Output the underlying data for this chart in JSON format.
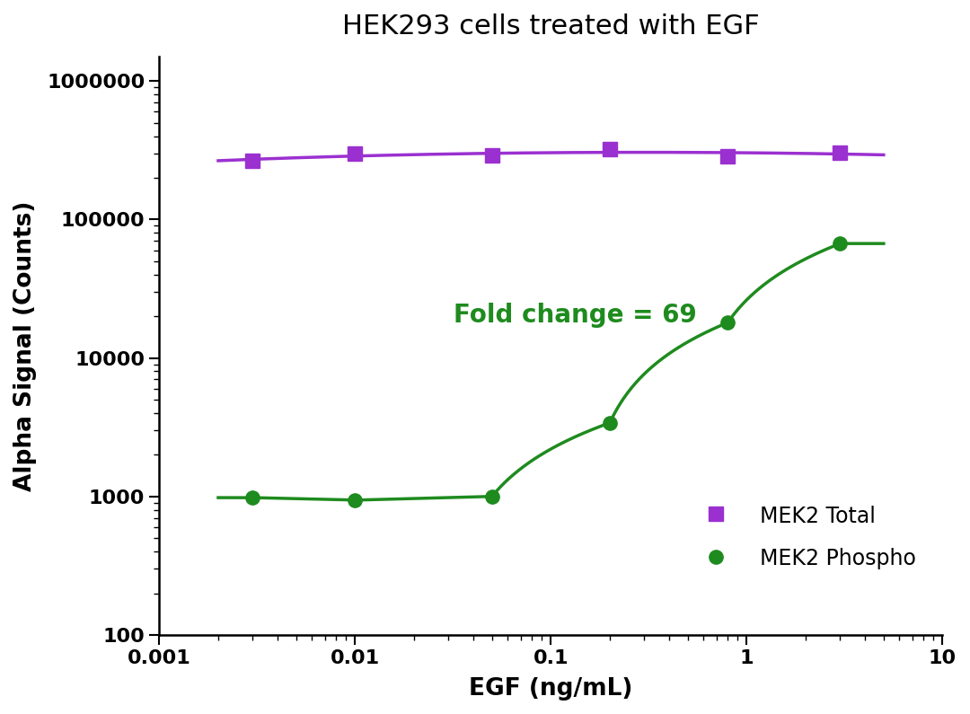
{
  "title": "HEK293 cells treated with EGF",
  "xlabel": "EGF (ng/mL)",
  "ylabel": "Alpha Signal (Counts)",
  "fold_change_text": "Fold change = 69",
  "fold_change_color": "#1e8b1e",
  "fold_change_x": 0.032,
  "fold_change_y": 18000,
  "total_x": [
    0.003,
    0.01,
    0.05,
    0.2,
    0.8,
    3.0
  ],
  "total_y": [
    265000,
    300000,
    290000,
    320000,
    285000,
    305000
  ],
  "total_color": "#9b30d0",
  "total_marker": "s",
  "total_label": "MEK2 Total",
  "phospho_x": [
    0.003,
    0.01,
    0.05,
    0.2,
    0.8,
    3.0
  ],
  "phospho_y": [
    980,
    940,
    1000,
    3400,
    18000,
    67000
  ],
  "phospho_color": "#1e8b1e",
  "phospho_marker": "o",
  "phospho_label": "MEK2 Phospho",
  "xlim": [
    0.001,
    10
  ],
  "ylim": [
    100,
    1500000
  ],
  "background_color": "#ffffff",
  "title_fontsize": 22,
  "axis_label_fontsize": 19,
  "tick_fontsize": 16,
  "legend_fontsize": 17,
  "annotation_fontsize": 20,
  "line_width": 2.5,
  "marker_size": 11
}
